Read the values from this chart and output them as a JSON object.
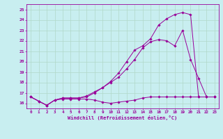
{
  "bg_color": "#c8eef0",
  "grid_color": "#b0d8c8",
  "line_color": "#990099",
  "xlabel": "Windchill (Refroidissement éolien,°C)",
  "xlim": [
    -0.5,
    23.5
  ],
  "ylim": [
    15.5,
    25.5
  ],
  "yticks": [
    16,
    17,
    18,
    19,
    20,
    21,
    22,
    23,
    24,
    25
  ],
  "xticks": [
    0,
    1,
    2,
    3,
    4,
    5,
    6,
    7,
    8,
    9,
    10,
    11,
    12,
    13,
    14,
    15,
    16,
    17,
    18,
    19,
    20,
    21,
    22,
    23
  ],
  "series": [
    [
      16.6,
      16.2,
      15.8,
      16.3,
      16.4,
      16.4,
      16.4,
      16.4,
      16.3,
      16.1,
      16.0,
      16.1,
      16.2,
      16.3,
      16.5,
      16.6,
      16.6,
      16.6,
      16.6,
      16.6,
      16.6,
      16.6,
      16.6,
      16.6
    ],
    [
      16.6,
      16.2,
      15.8,
      16.3,
      16.5,
      16.5,
      16.5,
      16.6,
      17.0,
      17.5,
      18.0,
      18.5,
      19.3,
      20.2,
      21.3,
      21.9,
      22.1,
      22.0,
      21.5,
      23.0,
      20.2,
      18.4,
      16.6,
      16.6
    ],
    [
      16.6,
      16.2,
      15.8,
      16.3,
      16.5,
      16.5,
      16.5,
      16.7,
      17.1,
      17.5,
      18.1,
      18.9,
      20.0,
      21.1,
      21.5,
      22.2,
      23.5,
      24.1,
      24.5,
      24.7,
      24.5,
      16.6,
      16.6,
      16.6
    ]
  ]
}
